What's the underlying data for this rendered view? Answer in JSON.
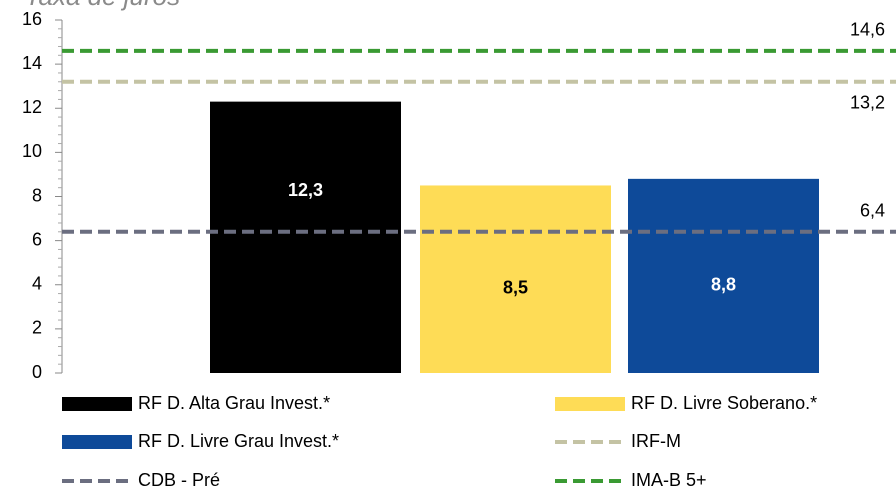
{
  "chart_data": {
    "type": "bar",
    "title": "Taxa de juros",
    "categories": [
      null
    ],
    "series": [
      {
        "name": "RF D. Alta Grau Invest.*",
        "color": "#000000",
        "values": [
          12.3
        ],
        "value_labels": [
          "12,3"
        ]
      },
      {
        "name": "RF D. Livre Soberano.*",
        "color": "#fedc56",
        "values": [
          8.5
        ],
        "value_labels": [
          "8,5"
        ]
      },
      {
        "name": "RF D. Livre Grau Invest.*",
        "color": "#0e4a99",
        "values": [
          8.8
        ],
        "value_labels": [
          "8,8"
        ]
      }
    ],
    "lines": [
      {
        "name": "IRF-M",
        "color": "#c4c3a4",
        "value": 13.2,
        "value_label": "13,2"
      },
      {
        "name": "CDB - Pré",
        "color": "#6b6e80",
        "value": 6.4,
        "value_label": "6,4"
      },
      {
        "name": "IMA-B 5+",
        "color": "#3a9a33",
        "value": 14.6,
        "value_label": "14,6"
      }
    ],
    "ylim": [
      0,
      16
    ],
    "yticks": [
      0,
      2,
      4,
      6,
      8,
      10,
      12,
      14,
      16
    ]
  }
}
